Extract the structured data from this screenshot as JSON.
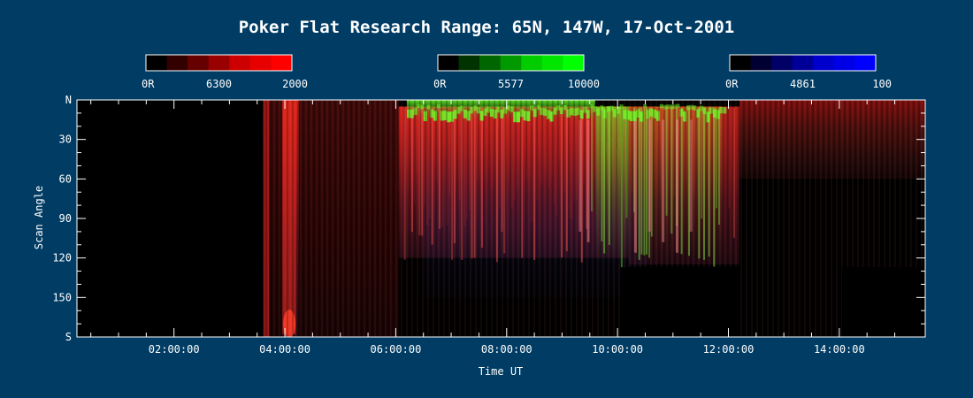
{
  "chart_data": {
    "type": "heatmap",
    "title": "Poker Flat Research Range: 65N, 147W, 17-Oct-2001",
    "xlabel": "Time UT",
    "ylabel": "Scan Angle",
    "x_ticks": [
      "02:00:00",
      "04:00:00",
      "06:00:00",
      "08:00:00",
      "10:00:00",
      "12:00:00",
      "14:00:00"
    ],
    "x_tick_hours": [
      2,
      4,
      6,
      8,
      10,
      12,
      14
    ],
    "xlim_hours": [
      0.25,
      15.55
    ],
    "y_ticks": [
      "N",
      "30",
      "60",
      "90",
      "120",
      "150",
      "S"
    ],
    "y_tick_values": [
      0,
      30,
      60,
      90,
      120,
      150,
      180
    ],
    "ylim": [
      0,
      180
    ],
    "colorbars": [
      {
        "wavelength": "6300",
        "min_label": "0R",
        "max_label": "2000",
        "colors": [
          "#000000",
          "#330000",
          "#660000",
          "#990000",
          "#cc0000",
          "#e60000",
          "#ff0000"
        ]
      },
      {
        "wavelength": "5577",
        "min_label": "0R",
        "max_label": "10000",
        "colors": [
          "#000000",
          "#003300",
          "#006600",
          "#009900",
          "#00cc00",
          "#00e600",
          "#00ff00"
        ]
      },
      {
        "wavelength": "4861",
        "min_label": "0R",
        "max_label": "100",
        "colors": [
          "#000000",
          "#000033",
          "#000066",
          "#000099",
          "#0000cc",
          "#0000e6",
          "#0000ff"
        ]
      }
    ],
    "no_data_ranges_hours": [
      [
        0.25,
        3.6
      ]
    ],
    "masked_blocks": [
      {
        "start_hour": 10.05,
        "end_hour": 12.2,
        "scan_from": 127,
        "scan_to": 180
      },
      {
        "start_hour": 14.05,
        "end_hour": 15.55,
        "scan_from": 127,
        "scan_to": 180
      }
    ],
    "emission_features": [
      {
        "band": "red",
        "start_hour": 3.6,
        "end_hour": 6.05,
        "scan_from": 0,
        "scan_to": 180,
        "intensity": 0.55
      },
      {
        "band": "red",
        "start_hour": 3.95,
        "end_hour": 4.25,
        "scan_from": 0,
        "scan_to": 180,
        "intensity": 0.8
      },
      {
        "band": "red",
        "start_hour": 6.05,
        "end_hour": 10.2,
        "scan_from": 5,
        "scan_to": 120,
        "intensity": 0.85
      },
      {
        "band": "green",
        "start_hour": 6.2,
        "end_hour": 9.6,
        "scan_from": 0,
        "scan_to": 15,
        "intensity": 0.9
      },
      {
        "band": "green",
        "start_hour": 9.6,
        "end_hour": 11.9,
        "scan_from": 5,
        "scan_to": 125,
        "intensity": 0.7
      },
      {
        "band": "red",
        "start_hour": 10.2,
        "end_hour": 12.2,
        "scan_from": 5,
        "scan_to": 125,
        "intensity": 0.7
      },
      {
        "band": "red",
        "start_hour": 12.2,
        "end_hour": 15.55,
        "scan_from": 0,
        "scan_to": 60,
        "intensity": 0.6
      },
      {
        "band": "blue",
        "start_hour": 6.5,
        "end_hour": 10.5,
        "scan_from": 40,
        "scan_to": 150,
        "intensity": 0.25
      }
    ]
  }
}
